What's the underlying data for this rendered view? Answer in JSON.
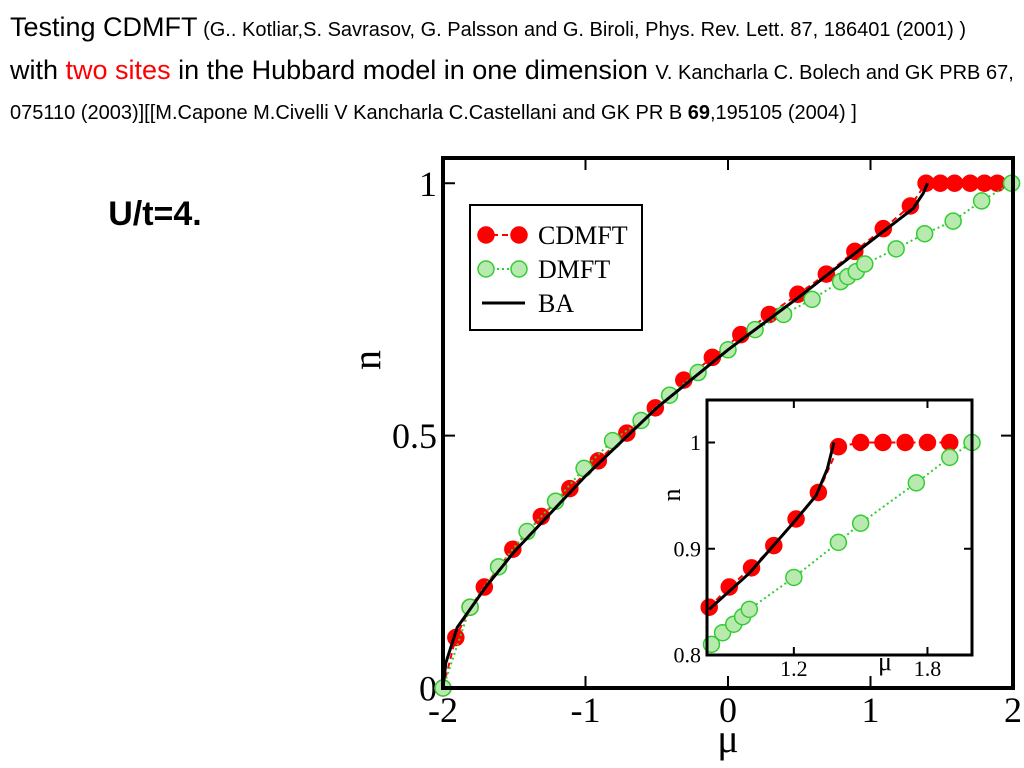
{
  "slide": {
    "header": [
      "Testing    CDMFT",
      " (G.. Kotliar,S. Savrasov, G. Palsson and G. Biroli, Phys. Rev. Lett. 87, 186401 (2001) ) ",
      " with ",
      "two sites",
      " in  the Hubbard model in one dimension ",
      "V. Kancharla C. Bolech and GK  PRB 67, 075110 (2003)][[M.Capone M.Civelli  V Kancharla C.Castellani and GK  PR B ",
      "69",
      ",195105 (2004) ]"
    ]
  },
  "chart_data": [
    {
      "type": "scatter",
      "annotation": "U/t=4.",
      "xlabel": "μ",
      "ylabel": "n",
      "xlim": [
        -2,
        2
      ],
      "xticks": [
        -2,
        -1,
        0,
        1,
        2
      ],
      "ylim": [
        0,
        1.05
      ],
      "yticks": [
        0,
        0.5,
        1
      ],
      "legend": "top-left",
      "series": [
        {
          "name": "CDMFT",
          "color": "#ff0000",
          "style": "dashed",
          "marker": true,
          "x": [
            -2,
            -1.91,
            -1.81,
            -1.71,
            -1.51,
            -1.31,
            -1.11,
            -0.91,
            -0.71,
            -0.51,
            -0.31,
            -0.11,
            0.09,
            0.29,
            0.49,
            0.69,
            0.89,
            1.09,
            1.28,
            1.39,
            1.49,
            1.59,
            1.7,
            1.8,
            1.89
          ],
          "values": [
            0,
            0.1,
            0.16,
            0.2,
            0.275,
            0.34,
            0.395,
            0.45,
            0.505,
            0.555,
            0.61,
            0.655,
            0.7,
            0.74,
            0.78,
            0.82,
            0.865,
            0.91,
            0.955,
            1,
            1,
            1,
            1,
            1,
            1
          ]
        },
        {
          "name": "DMFT",
          "color": "#33cc33",
          "style": "dotted",
          "marker": true,
          "x": [
            -2,
            -1.81,
            -1.61,
            -1.41,
            -1.21,
            -1.01,
            -0.81,
            -0.61,
            -0.41,
            -0.21,
            0,
            0.19,
            0.39,
            0.59,
            0.79,
            0.84,
            0.9,
            0.96,
            1.18,
            1.38,
            1.58,
            1.78,
            1.99
          ],
          "values": [
            0,
            0.16,
            0.24,
            0.31,
            0.37,
            0.435,
            0.49,
            0.53,
            0.58,
            0.625,
            0.67,
            0.71,
            0.74,
            0.77,
            0.805,
            0.815,
            0.825,
            0.84,
            0.87,
            0.9,
            0.925,
            0.965,
            1
          ]
        },
        {
          "name": "BA",
          "color": "#000000",
          "style": "solid",
          "marker": false,
          "x": [
            -2,
            -1.98,
            -1.9,
            -1.7,
            -1.5,
            -1,
            -0.5,
            0,
            0.5,
            1,
            1.3,
            1.37,
            1.4
          ],
          "values": [
            0,
            0.05,
            0.12,
            0.2,
            0.27,
            0.42,
            0.555,
            0.67,
            0.775,
            0.885,
            0.95,
            0.98,
            1
          ]
        }
      ]
    },
    {
      "type": "scatter",
      "xlabel": "μ",
      "ylabel": "n",
      "xlim": [
        0.81,
        2.0
      ],
      "xticks": [
        1.2,
        1.8
      ],
      "ylim": [
        0.8,
        1.04
      ],
      "yticks": [
        0.8,
        0.9,
        1
      ],
      "series": [
        {
          "color": "#ff0000",
          "style": "dashed",
          "marker": true,
          "x": [
            0.82,
            0.91,
            1.01,
            1.11,
            1.21,
            1.31,
            1.4,
            1.5,
            1.6,
            1.7,
            1.8,
            1.9
          ],
          "values": [
            0.845,
            0.864,
            0.882,
            0.903,
            0.928,
            0.953,
            0.996,
            1,
            1,
            1,
            1,
            1
          ]
        },
        {
          "color": "#33cc33",
          "style": "dotted",
          "marker": true,
          "x": [
            0.83,
            0.88,
            0.93,
            0.97,
            1.0,
            1.2,
            1.4,
            1.5,
            1.75,
            1.9,
            2.0
          ],
          "values": [
            0.81,
            0.821,
            0.829,
            0.836,
            0.843,
            0.873,
            0.906,
            0.924,
            0.962,
            0.986,
            1
          ]
        },
        {
          "color": "#000000",
          "style": "solid",
          "marker": false,
          "x": [
            0.82,
            1.0,
            1.2,
            1.3,
            1.35,
            1.38
          ],
          "values": [
            0.843,
            0.877,
            0.925,
            0.95,
            0.975,
            1
          ]
        }
      ]
    }
  ]
}
